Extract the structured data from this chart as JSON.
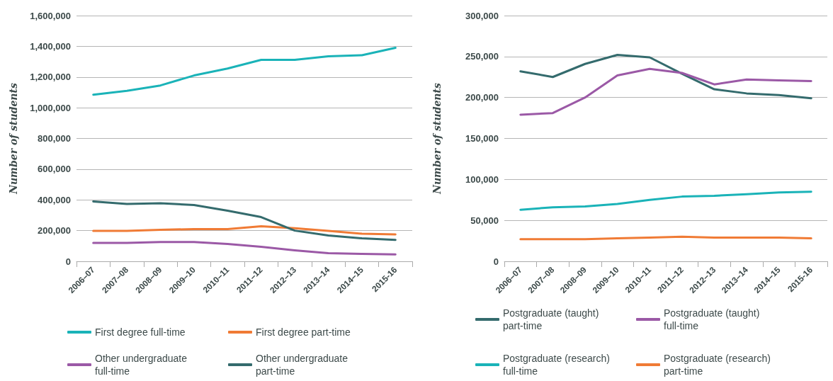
{
  "chart_data": [
    {
      "type": "line",
      "categories": [
        "2006–07",
        "2007–08",
        "2008–09",
        "2009–10",
        "2010–11",
        "2011–12",
        "2012–13",
        "2013–14",
        "2014–15",
        "2015-16"
      ],
      "ylabel": "Number of students",
      "ylim": [
        0,
        1600000
      ],
      "yticks": [
        {
          "value": 0,
          "label": "0"
        },
        {
          "value": 200000,
          "label": "200,000"
        },
        {
          "value": 400000,
          "label": "400,000"
        },
        {
          "value": 600000,
          "label": "600,000"
        },
        {
          "value": 800000,
          "label": "800,000"
        },
        {
          "value": 1000000,
          "label": "1,000,000"
        },
        {
          "value": 1200000,
          "label": "1,200,000"
        },
        {
          "value": 1400000,
          "label": "1,400,000"
        },
        {
          "value": 1600000,
          "label": "1,600,000"
        }
      ],
      "grid": "y",
      "legend": "bottom",
      "marker": "none",
      "line_style": "solid",
      "series": [
        {
          "name": "First degree full-time",
          "color": "#1ab3b8",
          "values": [
            1085000,
            1110000,
            1145000,
            1210000,
            1255000,
            1312000,
            1312000,
            1335000,
            1342000,
            1390000
          ]
        },
        {
          "name": "First degree part-time",
          "color": "#f07b35",
          "values": [
            198000,
            198000,
            205000,
            210000,
            210000,
            228000,
            215000,
            198000,
            180000,
            175000
          ]
        },
        {
          "name": "Other undergraduate full-time",
          "color": "#9b59a6",
          "values": [
            120000,
            120000,
            126000,
            126000,
            113000,
            95000,
            72000,
            53000,
            48000,
            45000
          ]
        },
        {
          "name": "Other undergraduate part-time",
          "color": "#346b6d",
          "values": [
            390000,
            373000,
            378000,
            367000,
            330000,
            288000,
            200000,
            168000,
            150000,
            140000
          ]
        }
      ]
    },
    {
      "type": "line",
      "categories": [
        "2006–07",
        "2007–08",
        "2008–09",
        "2009–10",
        "2010–11",
        "2011–12",
        "2012–13",
        "2013–14",
        "2014–15",
        "2015-16"
      ],
      "ylabel": "Number of students",
      "ylim": [
        0,
        300000
      ],
      "yticks": [
        {
          "value": 0,
          "label": "0"
        },
        {
          "value": 50000,
          "label": "50,000"
        },
        {
          "value": 100000,
          "label": "100,000"
        },
        {
          "value": 150000,
          "label": "150,000"
        },
        {
          "value": 200000,
          "label": "200,000"
        },
        {
          "value": 250000,
          "label": "250,000"
        },
        {
          "value": 300000,
          "label": "300,000"
        }
      ],
      "grid": "y",
      "legend": "bottom",
      "marker": "none",
      "line_style": "solid",
      "series": [
        {
          "name": "Postgraduate (taught) part-time",
          "color": "#346b6d",
          "values": [
            232000,
            225000,
            241000,
            252000,
            249000,
            229000,
            210000,
            205000,
            203000,
            199000
          ]
        },
        {
          "name": "Postgraduate (taught) full-time",
          "color": "#9b59a6",
          "values": [
            179000,
            181000,
            200000,
            227000,
            235000,
            230000,
            216000,
            222000,
            221000,
            220000
          ]
        },
        {
          "name": "Postgraduate (research) full-time",
          "color": "#1ab3b8",
          "values": [
            63000,
            66000,
            67000,
            70000,
            75000,
            79000,
            80000,
            82000,
            84000,
            85000
          ]
        },
        {
          "name": "Postgraduate (research) part-time",
          "color": "#f07b35",
          "values": [
            27000,
            27000,
            27000,
            28000,
            29000,
            30000,
            29000,
            29000,
            29000,
            28000
          ]
        }
      ]
    }
  ]
}
